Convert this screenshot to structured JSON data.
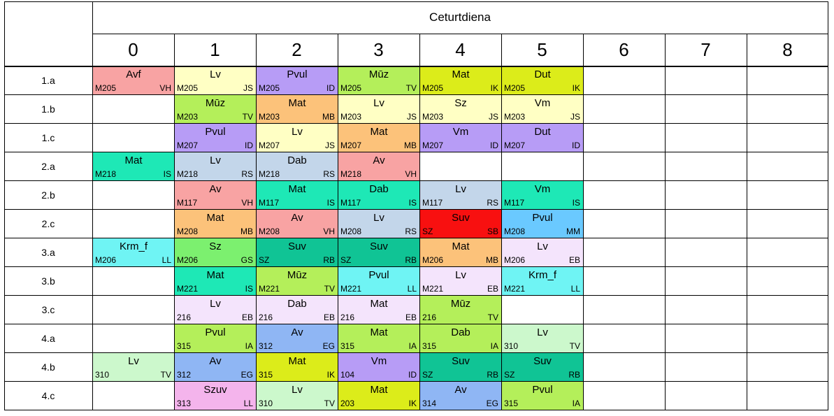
{
  "day": "Ceturtdiena",
  "periods": [
    "0",
    "1",
    "2",
    "3",
    "4",
    "5",
    "6",
    "7",
    "8"
  ],
  "classes": [
    "1.a",
    "1.b",
    "1.c",
    "2.a",
    "2.b",
    "2.c",
    "3.a",
    "3.b",
    "3.c",
    "4.a",
    "4.b",
    "4.c"
  ],
  "lessons": [
    [
      {
        "period": 0,
        "subject": "Avf",
        "room": "M205",
        "teacher": "VH",
        "color": "#f8a3a3"
      },
      {
        "period": 1,
        "subject": "Lv",
        "room": "M205",
        "teacher": "JS",
        "color": "#ffffc4"
      },
      {
        "period": 2,
        "subject": "Pvul",
        "room": "M205",
        "teacher": "ID",
        "color": "#b79cf6"
      },
      {
        "period": 3,
        "subject": "Mūz",
        "room": "M205",
        "teacher": "TV",
        "color": "#b4ef5a"
      },
      {
        "period": 4,
        "subject": "Mat",
        "room": "M205",
        "teacher": "IK",
        "color": "#dcec1a"
      },
      {
        "period": 5,
        "subject": "Dut",
        "room": "M205",
        "teacher": "IK",
        "color": "#dcec1a"
      }
    ],
    [
      {
        "period": 1,
        "subject": "Mūz",
        "room": "M203",
        "teacher": "TV",
        "color": "#b4ef5a"
      },
      {
        "period": 2,
        "subject": "Mat",
        "room": "M203",
        "teacher": "MB",
        "color": "#fcc27a"
      },
      {
        "period": 3,
        "subject": "Lv",
        "room": "M203",
        "teacher": "JS",
        "color": "#ffffc4"
      },
      {
        "period": 4,
        "subject": "Sz",
        "room": "M203",
        "teacher": "JS",
        "color": "#ffffc4"
      },
      {
        "period": 5,
        "subject": "Vm",
        "room": "M203",
        "teacher": "JS",
        "color": "#ffffc4"
      }
    ],
    [
      {
        "period": 1,
        "subject": "Pvul",
        "room": "M207",
        "teacher": "ID",
        "color": "#b79cf6"
      },
      {
        "period": 2,
        "subject": "Lv",
        "room": "M207",
        "teacher": "JS",
        "color": "#ffffc4"
      },
      {
        "period": 3,
        "subject": "Mat",
        "room": "M207",
        "teacher": "MB",
        "color": "#fcc27a"
      },
      {
        "period": 4,
        "subject": "Vm",
        "room": "M207",
        "teacher": "ID",
        "color": "#b79cf6"
      },
      {
        "period": 5,
        "subject": "Dut",
        "room": "M207",
        "teacher": "ID",
        "color": "#b79cf6"
      }
    ],
    [
      {
        "period": 0,
        "subject": "Mat",
        "room": "M218",
        "teacher": "IS",
        "color": "#1ee8b6"
      },
      {
        "period": 1,
        "subject": "Lv",
        "room": "M218",
        "teacher": "RS",
        "color": "#c3d6ea"
      },
      {
        "period": 2,
        "subject": "Dab",
        "room": "M218",
        "teacher": "RS",
        "color": "#c3d6ea"
      },
      {
        "period": 3,
        "subject": "Av",
        "room": "M218",
        "teacher": "VH",
        "color": "#f8a3a3"
      }
    ],
    [
      {
        "period": 1,
        "subject": "Av",
        "room": "M117",
        "teacher": "VH",
        "color": "#f8a3a3"
      },
      {
        "period": 2,
        "subject": "Mat",
        "room": "M117",
        "teacher": "IS",
        "color": "#1ee8b6"
      },
      {
        "period": 3,
        "subject": "Dab",
        "room": "M117",
        "teacher": "IS",
        "color": "#1ee8b6"
      },
      {
        "period": 4,
        "subject": "Lv",
        "room": "M117",
        "teacher": "RS",
        "color": "#c3d6ea"
      },
      {
        "period": 5,
        "subject": "Vm",
        "room": "M117",
        "teacher": "IS",
        "color": "#1ee8b6"
      }
    ],
    [
      {
        "period": 1,
        "subject": "Mat",
        "room": "M208",
        "teacher": "MB",
        "color": "#fcc27a"
      },
      {
        "period": 2,
        "subject": "Av",
        "room": "M208",
        "teacher": "VH",
        "color": "#f8a3a3"
      },
      {
        "period": 3,
        "subject": "Lv",
        "room": "M208",
        "teacher": "RS",
        "color": "#c3d6ea"
      },
      {
        "period": 4,
        "subject": "Suv",
        "room": "SZ",
        "teacher": "SB",
        "color": "#f81010"
      },
      {
        "period": 5,
        "subject": "Pvul",
        "room": "M208",
        "teacher": "MM",
        "color": "#6ac9ff"
      }
    ],
    [
      {
        "period": 0,
        "subject": "Krm_f",
        "room": "M206",
        "teacher": "LL",
        "color": "#6ff4f4"
      },
      {
        "period": 1,
        "subject": "Sz",
        "room": "M206",
        "teacher": "GS",
        "color": "#7cf06f"
      },
      {
        "period": 2,
        "subject": "Suv",
        "room": "SZ",
        "teacher": "RB",
        "color": "#10c495"
      },
      {
        "period": 3,
        "subject": "Suv",
        "room": "SZ",
        "teacher": "RB",
        "color": "#10c495"
      },
      {
        "period": 4,
        "subject": "Mat",
        "room": "M206",
        "teacher": "MB",
        "color": "#fcc27a"
      },
      {
        "period": 5,
        "subject": "Lv",
        "room": "M206",
        "teacher": "EB",
        "color": "#f4e4fc"
      }
    ],
    [
      {
        "period": 1,
        "subject": "Mat",
        "room": "M221",
        "teacher": "IS",
        "color": "#1ee8b6"
      },
      {
        "period": 2,
        "subject": "Mūz",
        "room": "M221",
        "teacher": "TV",
        "color": "#b4ef5a"
      },
      {
        "period": 3,
        "subject": "Pvul",
        "room": "M221",
        "teacher": "LL",
        "color": "#6ff4f4"
      },
      {
        "period": 4,
        "subject": "Lv",
        "room": "M221",
        "teacher": "EB",
        "color": "#f4e4fc"
      },
      {
        "period": 5,
        "subject": "Krm_f",
        "room": "M221",
        "teacher": "LL",
        "color": "#6ff4f4"
      }
    ],
    [
      {
        "period": 1,
        "subject": "Lv",
        "room": "216",
        "teacher": "EB",
        "color": "#f4e4fc"
      },
      {
        "period": 2,
        "subject": "Dab",
        "room": "216",
        "teacher": "EB",
        "color": "#f4e4fc"
      },
      {
        "period": 3,
        "subject": "Mat",
        "room": "216",
        "teacher": "EB",
        "color": "#f4e4fc"
      },
      {
        "period": 4,
        "subject": "Mūz",
        "room": "216",
        "teacher": "TV",
        "color": "#b4ef5a"
      }
    ],
    [
      {
        "period": 1,
        "subject": "Pvul",
        "room": "315",
        "teacher": "IA",
        "color": "#b4ef5a"
      },
      {
        "period": 2,
        "subject": "Av",
        "room": "312",
        "teacher": "EG",
        "color": "#8fb6f4"
      },
      {
        "period": 3,
        "subject": "Mat",
        "room": "315",
        "teacher": "IA",
        "color": "#b4ef5a"
      },
      {
        "period": 4,
        "subject": "Dab",
        "room": "315",
        "teacher": "IA",
        "color": "#b4ef5a"
      },
      {
        "period": 5,
        "subject": "Lv",
        "room": "310",
        "teacher": "TV",
        "color": "#ccf8cc"
      }
    ],
    [
      {
        "period": 0,
        "subject": "Lv",
        "room": "310",
        "teacher": "TV",
        "color": "#ccf8cc"
      },
      {
        "period": 1,
        "subject": "Av",
        "room": "312",
        "teacher": "EG",
        "color": "#8fb6f4"
      },
      {
        "period": 2,
        "subject": "Mat",
        "room": "315",
        "teacher": "IK",
        "color": "#dcec1a"
      },
      {
        "period": 3,
        "subject": "Vm",
        "room": "104",
        "teacher": "ID",
        "color": "#b79cf6"
      },
      {
        "period": 4,
        "subject": "Suv",
        "room": "SZ",
        "teacher": "RB",
        "color": "#10c495"
      },
      {
        "period": 5,
        "subject": "Suv",
        "room": "SZ",
        "teacher": "RB",
        "color": "#10c495"
      }
    ],
    [
      {
        "period": 1,
        "subject": "Szuv",
        "room": "313",
        "teacher": "LL",
        "color": "#f4b4ec"
      },
      {
        "period": 2,
        "subject": "Lv",
        "room": "310",
        "teacher": "TV",
        "color": "#ccf8cc"
      },
      {
        "period": 3,
        "subject": "Mat",
        "room": "203",
        "teacher": "IK",
        "color": "#dcec1a"
      },
      {
        "period": 4,
        "subject": "Av",
        "room": "314",
        "teacher": "EG",
        "color": "#8fb6f4"
      },
      {
        "period": 5,
        "subject": "Pvul",
        "room": "315",
        "teacher": "IA",
        "color": "#b4ef5a"
      }
    ]
  ]
}
